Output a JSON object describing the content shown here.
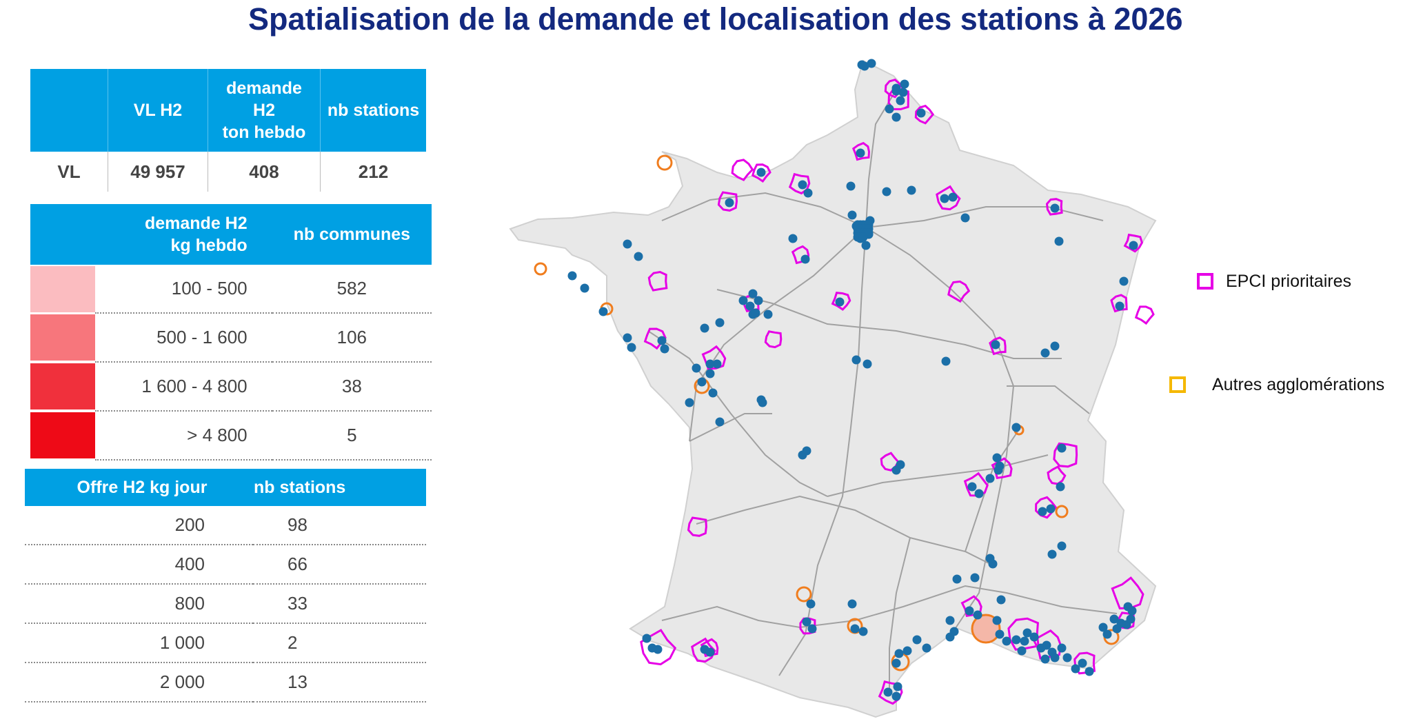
{
  "title": "Spatialisation de la demande et localisation des stations à 2026",
  "table_vehicles": {
    "headers": [
      "",
      "VL H2",
      "demande\nH2\nton hebdo",
      "nb stations"
    ],
    "rows": [
      {
        "label": "VL",
        "vl_h2": "49 957",
        "demande": "408",
        "nb_stations": "212"
      }
    ]
  },
  "table_demand": {
    "headers": [
      "demande H2\nkg hebdo",
      "nb communes"
    ],
    "rows": [
      {
        "color": "#fbbcc0",
        "range": "100 - 500",
        "count": "582"
      },
      {
        "color": "#f7767c",
        "range": "500 - 1 600",
        "count": "106"
      },
      {
        "color": "#f0303c",
        "range": "1 600 - 4 800",
        "count": "38"
      },
      {
        "color": "#ee0a17",
        "range": "> 4 800",
        "count": "5"
      }
    ]
  },
  "table_offer": {
    "headers": [
      "Offre H2 kg jour",
      "nb stations"
    ],
    "rows": [
      {
        "offer": "200",
        "stations": "98"
      },
      {
        "offer": "400",
        "stations": "66"
      },
      {
        "offer": "800",
        "stations": "33"
      },
      {
        "offer": "1 000",
        "stations": "2"
      },
      {
        "offer": "2 000",
        "stations": "13"
      }
    ]
  },
  "legend": {
    "epci": {
      "label": "EPCI prioritaires",
      "color": "#e600e6"
    },
    "autres": {
      "label": "Autres agglomérations",
      "color": "#f5b800"
    }
  },
  "colors": {
    "header_blue": "#00a0e3",
    "title_blue": "#13297f",
    "station_dot": "#1b6fa8",
    "map_fill": "#e8e8e8",
    "road": "#8a8a8a",
    "agglo_orange": "#f07d1e"
  }
}
